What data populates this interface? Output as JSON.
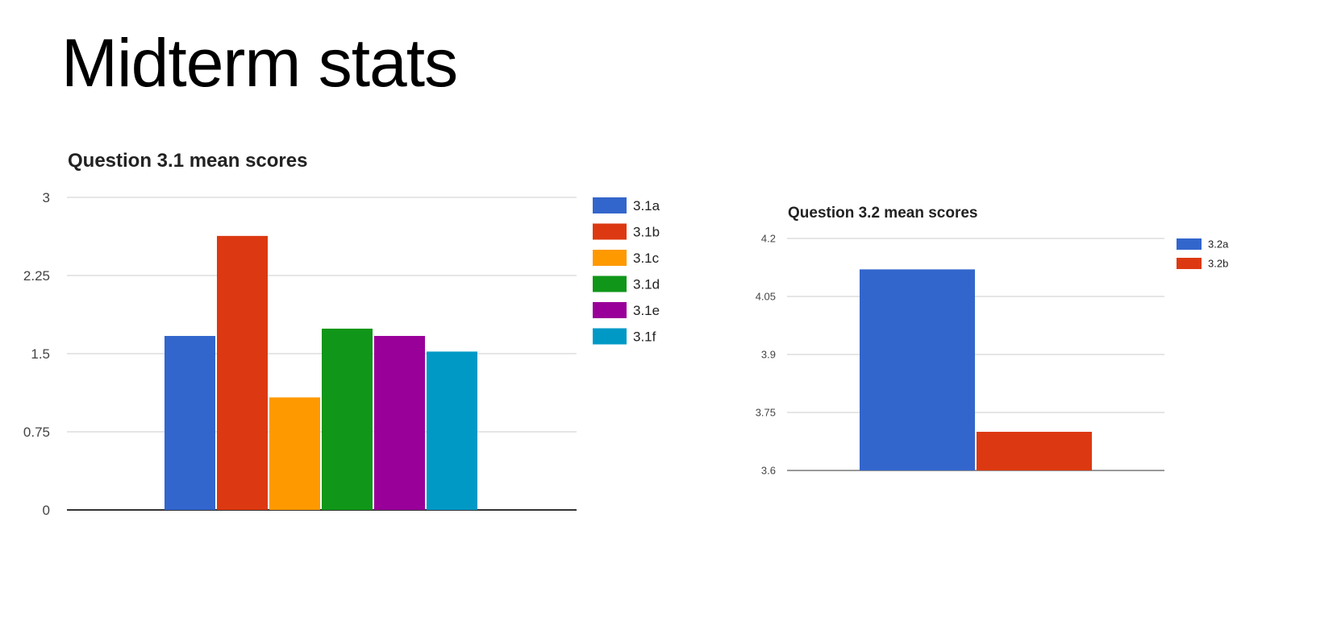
{
  "slide": {
    "title": "Midterm stats"
  },
  "chart_data": [
    {
      "type": "bar",
      "title": "Question 3.1 mean scores",
      "xlabel": "",
      "ylabel": "",
      "ylim": [
        0,
        3
      ],
      "yticks": [
        "0",
        "0.75",
        "1.5",
        "2.25",
        "3"
      ],
      "grid": true,
      "legend_position": "right",
      "series": [
        {
          "name": "3.1a",
          "values": [
            1.67
          ],
          "color": "#3366cc"
        },
        {
          "name": "3.1b",
          "values": [
            2.63
          ],
          "color": "#dc3912"
        },
        {
          "name": "3.1c",
          "values": [
            1.08
          ],
          "color": "#ff9900"
        },
        {
          "name": "3.1d",
          "values": [
            1.74
          ],
          "color": "#109618"
        },
        {
          "name": "3.1e",
          "values": [
            1.67
          ],
          "color": "#990099"
        },
        {
          "name": "3.1f",
          "values": [
            1.52
          ],
          "color": "#0099c6"
        }
      ]
    },
    {
      "type": "bar",
      "title": "Question 3.2 mean scores",
      "xlabel": "",
      "ylabel": "",
      "ylim": [
        3.6,
        4.2
      ],
      "yticks": [
        "3.6",
        "3.75",
        "3.9",
        "4.05",
        "4.2"
      ],
      "grid": true,
      "legend_position": "right",
      "series": [
        {
          "name": "3.2a",
          "values": [
            4.12
          ],
          "color": "#3366cc"
        },
        {
          "name": "3.2b",
          "values": [
            3.7
          ],
          "color": "#dc3912"
        }
      ]
    }
  ]
}
